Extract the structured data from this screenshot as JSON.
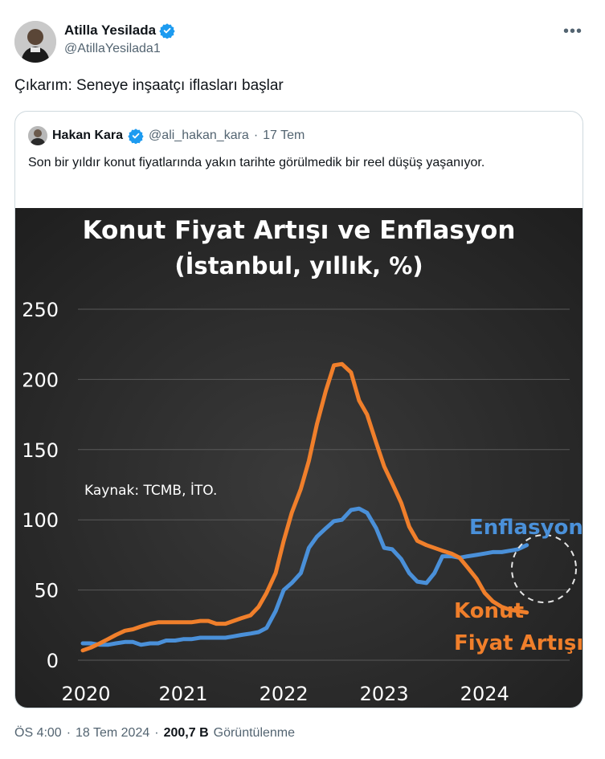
{
  "tweet": {
    "author_name": "Atilla Yesilada",
    "author_handle": "@AtillaYesilada1",
    "text": "Çıkarım:  Seneye inşaatçı iflasları başlar",
    "more_icon": "more-horizontal-icon",
    "time": "ÖS 4:00",
    "date": "18 Tem 2024",
    "views_count": "200,7 B",
    "views_label": "Görüntülenme",
    "separator": "·"
  },
  "quote": {
    "author_name": "Hakan Kara",
    "author_handle": "@ali_hakan_kara",
    "date": "17 Tem",
    "separator": "·",
    "text": "Son bir yıldır konut fiyatlarında yakın tarihte görülmedik bir reel düşüş yaşanıyor."
  },
  "colors": {
    "verified": "#1d9bf0",
    "chart_bg": "#2b2b2b",
    "housing": "#f07f2b",
    "inflation": "#4a90d9"
  },
  "chart_data": {
    "type": "line",
    "title": "Konut Fiyat Artışı ve Enflasyon",
    "subtitle": "(İstanbul, yıllık, %)",
    "source_note": "Kaynak: TCMB, İTO.",
    "xlabels": [
      "2020",
      "2021",
      "2022",
      "2023",
      "2024"
    ],
    "yticks": [
      "0",
      "50",
      "100",
      "150",
      "200",
      "250"
    ],
    "xlim": [
      2020.0,
      2024.67
    ],
    "ylim": [
      0,
      250
    ],
    "grid": "horizontal",
    "series": [
      {
        "name": "Enflasyon",
        "color": "#4a90d9",
        "x": [
          2020.0,
          2020.08,
          2020.17,
          2020.25,
          2020.33,
          2020.42,
          2020.5,
          2020.58,
          2020.67,
          2020.75,
          2020.83,
          2020.92,
          2021.0,
          2021.08,
          2021.17,
          2021.25,
          2021.33,
          2021.42,
          2021.5,
          2021.58,
          2021.67,
          2021.75,
          2021.83,
          2021.92,
          2022.0,
          2022.08,
          2022.17,
          2022.25,
          2022.33,
          2022.42,
          2022.5,
          2022.58,
          2022.67,
          2022.75,
          2022.83,
          2022.92,
          2023.0,
          2023.08,
          2023.17,
          2023.25,
          2023.33,
          2023.42,
          2023.5,
          2023.58,
          2023.67,
          2023.75,
          2023.83,
          2023.92,
          2024.0,
          2024.08,
          2024.17,
          2024.25,
          2024.33,
          2024.42
        ],
        "values": [
          12,
          12,
          11,
          11,
          12,
          13,
          13,
          11,
          12,
          12,
          14,
          14,
          15,
          15,
          16,
          16,
          16,
          16,
          17,
          18,
          19,
          20,
          23,
          35,
          50,
          55,
          62,
          80,
          88,
          94,
          99,
          100,
          107,
          108,
          105,
          94,
          80,
          79,
          72,
          62,
          56,
          55,
          62,
          74,
          74,
          73,
          74,
          75,
          76,
          77,
          77,
          78,
          79,
          82
        ]
      },
      {
        "name": "Konut Fiyat Artışı",
        "color": "#f07f2b",
        "x": [
          2020.0,
          2020.08,
          2020.17,
          2020.25,
          2020.33,
          2020.42,
          2020.5,
          2020.58,
          2020.67,
          2020.75,
          2020.83,
          2020.92,
          2021.0,
          2021.08,
          2021.17,
          2021.25,
          2021.33,
          2021.42,
          2021.5,
          2021.58,
          2021.67,
          2021.75,
          2021.83,
          2021.92,
          2022.0,
          2022.08,
          2022.17,
          2022.25,
          2022.33,
          2022.42,
          2022.5,
          2022.58,
          2022.67,
          2022.75,
          2022.83,
          2022.92,
          2023.0,
          2023.08,
          2023.17,
          2023.25,
          2023.33,
          2023.42,
          2023.5,
          2023.58,
          2023.67,
          2023.75,
          2023.83,
          2023.92,
          2024.0,
          2024.08,
          2024.17,
          2024.25,
          2024.33,
          2024.42
        ],
        "values": [
          7,
          9,
          12,
          15,
          18,
          21,
          22,
          24,
          26,
          27,
          27,
          27,
          27,
          27,
          28,
          28,
          26,
          26,
          28,
          30,
          32,
          38,
          48,
          62,
          85,
          105,
          122,
          142,
          168,
          192,
          210,
          211,
          205,
          185,
          175,
          155,
          138,
          126,
          112,
          95,
          85,
          82,
          80,
          78,
          76,
          73,
          66,
          58,
          48,
          42,
          38,
          36,
          35,
          34
        ]
      }
    ],
    "annotations": [
      {
        "text": "Enflasyon",
        "color": "#4a90d9"
      },
      {
        "text": "Konut",
        "color": "#f07f2b"
      },
      {
        "text": "Fiyat Artışı",
        "color": "#f07f2b"
      }
    ]
  }
}
